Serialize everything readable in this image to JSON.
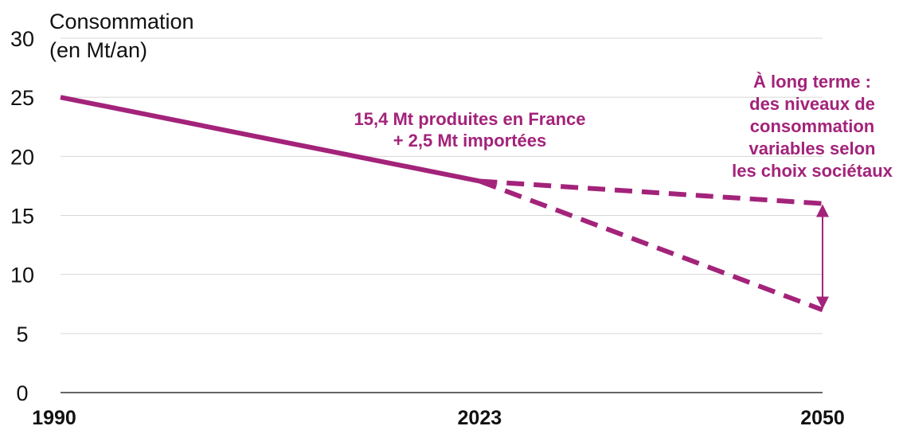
{
  "chart_data": {
    "type": "line",
    "ylabel_lines": [
      "Consommation",
      "(en Mt/an)"
    ],
    "ylim": [
      0,
      30
    ],
    "yticks": [
      0,
      5,
      10,
      15,
      20,
      25,
      30
    ],
    "x_ticks": [
      1990,
      2023,
      2050
    ],
    "xlim": [
      1990,
      2050
    ],
    "grid": true,
    "accent_color": "#a3237a",
    "series": [
      {
        "style": "solid",
        "x": [
          1990,
          2023
        ],
        "y": [
          25,
          17.9
        ]
      },
      {
        "style": "dashed",
        "x": [
          2023,
          2050
        ],
        "y": [
          17.9,
          16
        ]
      },
      {
        "style": "dashed",
        "x": [
          2023,
          2050
        ],
        "y": [
          17.9,
          7
        ]
      }
    ],
    "range_arrow": {
      "x": 2050,
      "y_from": 7,
      "y_to": 16
    },
    "annotations": [
      {
        "lines": [
          "15,4 Mt produites en France",
          "+ 2,5 Mt importées"
        ]
      },
      {
        "lines": [
          "À long terme :",
          "des niveaux de",
          "consommation",
          "variables selon",
          "les choix sociétaux"
        ]
      }
    ]
  }
}
